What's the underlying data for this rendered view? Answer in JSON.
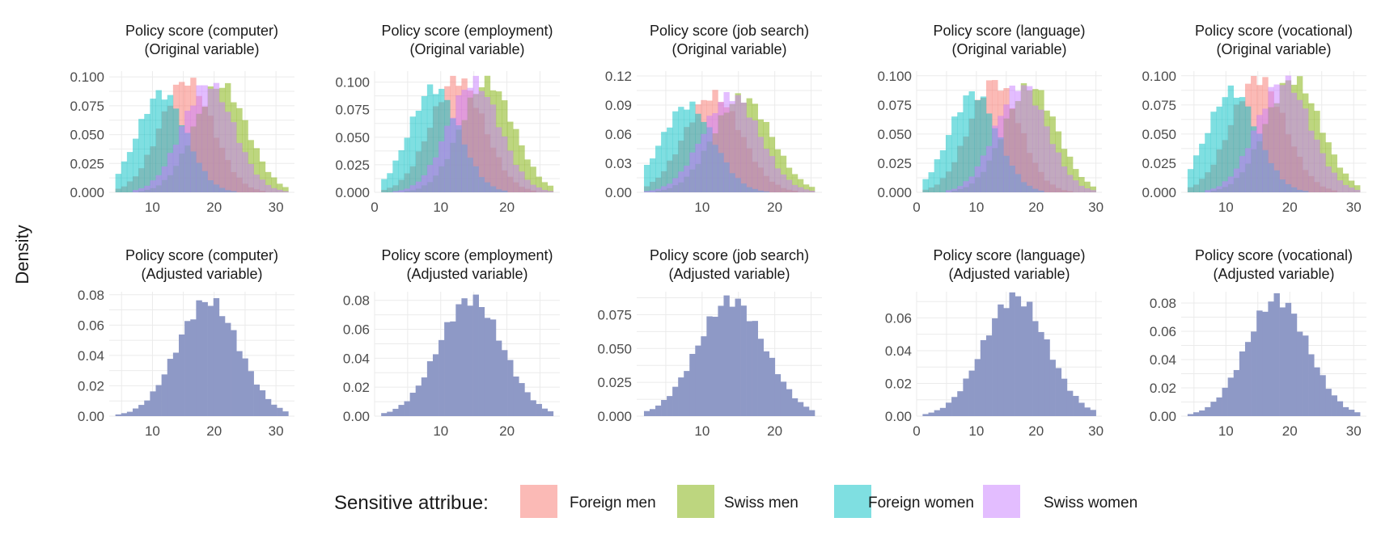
{
  "figure": {
    "ylabel": "Density",
    "legend": {
      "title": "Sensitive attribue:",
      "position": "bottom",
      "items": [
        {
          "label": "Foreign men",
          "color": "#F8766D"
        },
        {
          "label": "Swiss men",
          "color": "#7CAE00"
        },
        {
          "label": "Foreign women",
          "color": "#00BFC4"
        },
        {
          "label": "Swiss women",
          "color": "#C77CFF"
        }
      ]
    },
    "overlap_color": "#8E99C6",
    "fill_opacity": 0.5,
    "grid": true
  },
  "chart_data": [
    {
      "type": "histogram",
      "title_line1": "Policy score (computer)",
      "title_line2": "(Original variable)",
      "xlim": [
        3,
        33
      ],
      "ylim": [
        0,
        0.105
      ],
      "xticks": [
        10,
        20,
        30
      ],
      "yticks": [
        0,
        0.025,
        0.05,
        0.075,
        0.1
      ],
      "ytick_labels": [
        "0.000",
        "0.025",
        "0.050",
        "0.075",
        "0.100"
      ],
      "series": [
        {
          "name": "Foreign men",
          "mean": 15.5,
          "sd": 4.2,
          "peak": 0.097
        },
        {
          "name": "Swiss men",
          "mean": 21,
          "sd": 4.3,
          "peak": 0.093
        },
        {
          "name": "Foreign women",
          "mean": 11.5,
          "sd": 3.9,
          "peak": 0.086
        },
        {
          "name": "Swiss women",
          "mean": 19,
          "sd": 4.2,
          "peak": 0.094
        }
      ]
    },
    {
      "type": "histogram",
      "title_line1": "Policy score (employment)",
      "title_line2": "(Original variable)",
      "xlim": [
        0,
        28
      ],
      "ylim": [
        0,
        0.11
      ],
      "xticks": [
        0,
        10,
        20
      ],
      "yticks": [
        0,
        0.025,
        0.05,
        0.075,
        0.1
      ],
      "ytick_labels": [
        "0.000",
        "0.025",
        "0.050",
        "0.075",
        "0.100"
      ],
      "series": [
        {
          "name": "Foreign men",
          "mean": 12.5,
          "sd": 4.0,
          "peak": 0.103
        },
        {
          "name": "Swiss men",
          "mean": 17,
          "sd": 4.0,
          "peak": 0.1
        },
        {
          "name": "Foreign women",
          "mean": 9,
          "sd": 3.7,
          "peak": 0.095
        },
        {
          "name": "Swiss women",
          "mean": 15,
          "sd": 3.9,
          "peak": 0.1
        }
      ]
    },
    {
      "type": "histogram",
      "title_line1": "Policy score (job search)",
      "title_line2": "(Original variable)",
      "xlim": [
        1,
        26.5
      ],
      "ylim": [
        0,
        0.125
      ],
      "xticks": [
        10,
        20
      ],
      "yticks": [
        0,
        0.03,
        0.06,
        0.09,
        0.12
      ],
      "ytick_labels": [
        "0.00",
        "0.03",
        "0.06",
        "0.09",
        "0.12"
      ],
      "series": [
        {
          "name": "Foreign men",
          "mean": 11.5,
          "sd": 3.9,
          "peak": 0.1
        },
        {
          "name": "Swiss men",
          "mean": 15.5,
          "sd": 4.0,
          "peak": 0.098
        },
        {
          "name": "Foreign women",
          "mean": 8,
          "sd": 3.6,
          "peak": 0.09
        },
        {
          "name": "Swiss women",
          "mean": 14,
          "sd": 3.9,
          "peak": 0.1
        }
      ]
    },
    {
      "type": "histogram",
      "title_line1": "Policy score (language)",
      "title_line2": "(Original variable)",
      "xlim": [
        0,
        31
      ],
      "ylim": [
        0,
        0.104
      ],
      "xticks": [
        0,
        10,
        20,
        30
      ],
      "yticks": [
        0,
        0.025,
        0.05,
        0.075,
        0.1
      ],
      "ytick_labels": [
        "0.000",
        "0.025",
        "0.050",
        "0.075",
        "0.100"
      ],
      "series": [
        {
          "name": "Foreign men",
          "mean": 13,
          "sd": 4.2,
          "peak": 0.095
        },
        {
          "name": "Swiss men",
          "mean": 19,
          "sd": 4.4,
          "peak": 0.091
        },
        {
          "name": "Foreign women",
          "mean": 9.5,
          "sd": 4.0,
          "peak": 0.085
        },
        {
          "name": "Swiss women",
          "mean": 17.5,
          "sd": 4.3,
          "peak": 0.092
        }
      ]
    },
    {
      "type": "histogram",
      "title_line1": "Policy score (vocational)",
      "title_line2": "(Original variable)",
      "xlim": [
        3,
        32
      ],
      "ylim": [
        0,
        0.104
      ],
      "xticks": [
        10,
        20,
        30
      ],
      "yticks": [
        0,
        0.025,
        0.05,
        0.075,
        0.1
      ],
      "ytick_labels": [
        "0.000",
        "0.025",
        "0.050",
        "0.075",
        "0.100"
      ],
      "series": [
        {
          "name": "Foreign men",
          "mean": 15,
          "sd": 4.2,
          "peak": 0.098
        },
        {
          "name": "Swiss men",
          "mean": 20.5,
          "sd": 4.3,
          "peak": 0.097
        },
        {
          "name": "Foreign women",
          "mean": 11,
          "sd": 3.9,
          "peak": 0.087
        },
        {
          "name": "Swiss women",
          "mean": 19,
          "sd": 4.2,
          "peak": 0.096
        }
      ]
    },
    {
      "type": "histogram",
      "title_line1": "Policy score (computer)",
      "title_line2": "(Adjusted variable)",
      "xlim": [
        3,
        33
      ],
      "ylim": [
        0,
        0.082
      ],
      "xticks": [
        10,
        20,
        30
      ],
      "yticks": [
        0,
        0.02,
        0.04,
        0.06,
        0.08
      ],
      "ytick_labels": [
        "0.00",
        "0.02",
        "0.04",
        "0.06",
        "0.08"
      ],
      "series": [
        {
          "name": "Adjusted",
          "mean": 19,
          "sd": 5.0,
          "peak": 0.076
        }
      ]
    },
    {
      "type": "histogram",
      "title_line1": "Policy score (employment)",
      "title_line2": "(Adjusted variable)",
      "xlim": [
        0,
        28
      ],
      "ylim": [
        0,
        0.086
      ],
      "xticks": [
        10,
        20
      ],
      "yticks": [
        0,
        0.02,
        0.04,
        0.06,
        0.08
      ],
      "ytick_labels": [
        "0.00",
        "0.02",
        "0.04",
        "0.06",
        "0.08"
      ],
      "series": [
        {
          "name": "Adjusted",
          "mean": 14.5,
          "sd": 4.8,
          "peak": 0.081
        }
      ]
    },
    {
      "type": "histogram",
      "title_line1": "Policy score (job search)",
      "title_line2": "(Adjusted variable)",
      "xlim": [
        1,
        26.5
      ],
      "ylim": [
        0,
        0.092
      ],
      "xticks": [
        10,
        20
      ],
      "yticks": [
        0,
        0.025,
        0.05,
        0.075
      ],
      "ytick_labels": [
        "0.000",
        "0.025",
        "0.050",
        "0.075"
      ],
      "series": [
        {
          "name": "Adjusted",
          "mean": 14,
          "sd": 4.6,
          "peak": 0.086
        }
      ]
    },
    {
      "type": "histogram",
      "title_line1": "Policy score (language)",
      "title_line2": "(Adjusted variable)",
      "xlim": [
        0,
        31
      ],
      "ylim": [
        0,
        0.076
      ],
      "xticks": [
        0,
        10,
        20,
        30
      ],
      "yticks": [
        0,
        0.02,
        0.04,
        0.06
      ],
      "ytick_labels": [
        "0.00",
        "0.02",
        "0.04",
        "0.06"
      ],
      "series": [
        {
          "name": "Adjusted",
          "mean": 16.5,
          "sd": 5.3,
          "peak": 0.073
        }
      ]
    },
    {
      "type": "histogram",
      "title_line1": "Policy score (vocational)",
      "title_line2": "(Adjusted variable)",
      "xlim": [
        3,
        32
      ],
      "ylim": [
        0,
        0.088
      ],
      "xticks": [
        10,
        20,
        30
      ],
      "yticks": [
        0,
        0.02,
        0.04,
        0.06,
        0.08
      ],
      "ytick_labels": [
        "0.00",
        "0.02",
        "0.04",
        "0.06",
        "0.08"
      ],
      "series": [
        {
          "name": "Adjusted",
          "mean": 18,
          "sd": 4.8,
          "peak": 0.083
        }
      ]
    }
  ]
}
